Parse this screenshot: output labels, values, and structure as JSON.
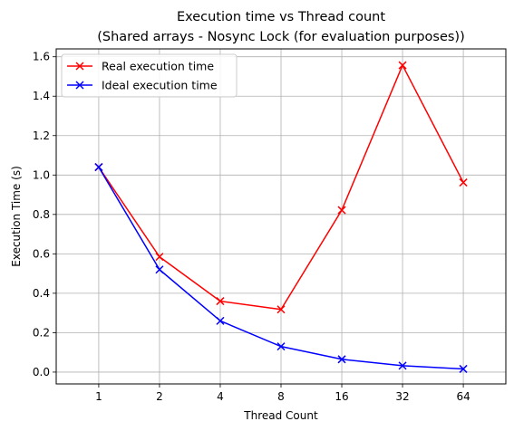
{
  "chart_data": {
    "type": "line",
    "title": "Execution time vs Thread count",
    "subtitle": "(Shared arrays - Nosync Lock (for evaluation purposes))",
    "xlabel": "Thread Count",
    "ylabel": "Execution Time (s)",
    "x": [
      "1",
      "2",
      "4",
      "8",
      "16",
      "32",
      "64"
    ],
    "yticks": [
      "0.0",
      "0.2",
      "0.4",
      "0.6",
      "0.8",
      "1.0",
      "1.2",
      "1.4",
      "1.6"
    ],
    "ylim": [
      -0.06,
      1.64
    ],
    "grid": true,
    "legend_position": "top-left",
    "series": [
      {
        "name": "Real execution time",
        "color": "#ff0000",
        "marker": "x",
        "values": [
          1.04,
          0.585,
          0.36,
          0.318,
          0.822,
          1.557,
          0.962
        ]
      },
      {
        "name": "Ideal execution time",
        "color": "#0000ff",
        "marker": "x",
        "values": [
          1.04,
          0.52,
          0.26,
          0.13,
          0.065,
          0.0325,
          0.016
        ]
      }
    ]
  }
}
